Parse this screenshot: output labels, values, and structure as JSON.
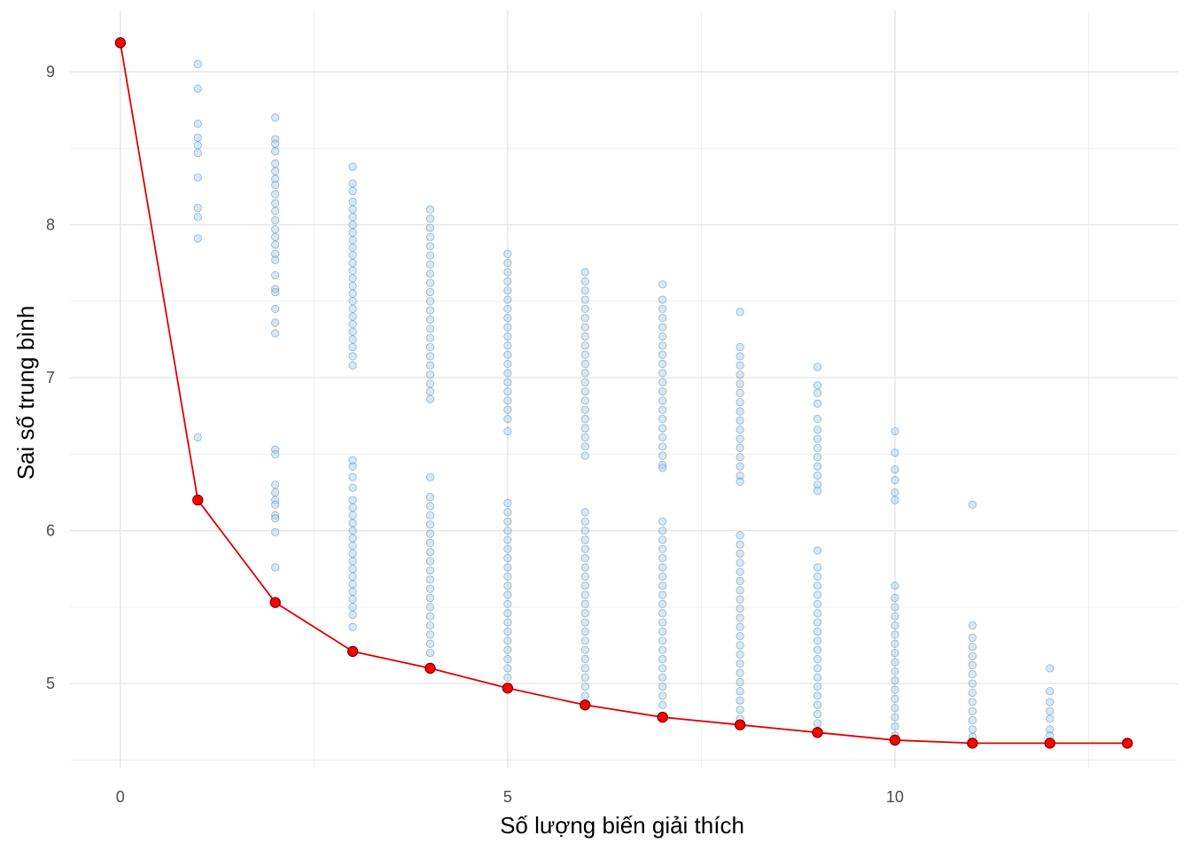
{
  "chart_data": {
    "type": "scatter",
    "title": "",
    "xlabel": "Số lượng biến giải thích",
    "ylabel": "Sai số trung bình",
    "xlim": [
      -0.65,
      13.65
    ],
    "ylim": [
      4.45,
      9.4
    ],
    "x_ticks": [
      0,
      5,
      10
    ],
    "y_ticks": [
      5,
      6,
      7,
      8,
      9
    ],
    "grid": true,
    "legend": "none",
    "colors": {
      "points_fill": "#a6cbe6",
      "points_stroke": "#3f7fae",
      "best_line": "#e00000",
      "best_point_fill": "#ff0000",
      "best_point_stroke": "#7a0000",
      "grid": "#e5e5e5"
    },
    "series": [
      {
        "kind": "all-models",
        "points_by_x": [
          {
            "x": 0,
            "y": [
              9.19
            ]
          },
          {
            "x": 1,
            "y": [
              9.05,
              8.89,
              8.66,
              8.57,
              8.52,
              8.47,
              8.31,
              8.11,
              8.05,
              7.91,
              6.61,
              6.2
            ]
          },
          {
            "x": 2,
            "y": [
              8.7,
              8.56,
              8.53,
              8.48,
              8.4,
              8.35,
              8.3,
              8.26,
              8.2,
              8.14,
              8.09,
              8.03,
              7.97,
              7.92,
              7.87,
              7.81,
              7.77,
              7.67,
              7.58,
              7.56,
              7.45,
              7.36,
              7.29,
              6.53,
              6.5,
              6.3,
              6.25,
              6.2,
              6.17,
              6.1,
              6.08,
              5.99,
              5.76,
              5.53
            ]
          },
          {
            "x": 3,
            "y": [
              8.38,
              8.27,
              8.22,
              8.15,
              8.1,
              8.05,
              8.0,
              7.95,
              7.9,
              7.85,
              7.8,
              7.75,
              7.7,
              7.65,
              7.6,
              7.55,
              7.5,
              7.45,
              7.4,
              7.35,
              7.3,
              7.25,
              7.2,
              7.14,
              7.08,
              6.46,
              6.42,
              6.35,
              6.28,
              6.2,
              6.15,
              6.1,
              6.05,
              6.0,
              5.95,
              5.9,
              5.85,
              5.8,
              5.75,
              5.7,
              5.65,
              5.6,
              5.55,
              5.5,
              5.45,
              5.37,
              5.21
            ]
          },
          {
            "x": 4,
            "y": [
              8.1,
              8.04,
              7.98,
              7.92,
              7.86,
              7.8,
              7.74,
              7.68,
              7.62,
              7.56,
              7.5,
              7.44,
              7.38,
              7.32,
              7.26,
              7.2,
              7.14,
              7.08,
              7.02,
              6.96,
              6.91,
              6.86,
              6.35,
              6.22,
              6.16,
              6.1,
              6.04,
              5.98,
              5.92,
              5.86,
              5.8,
              5.74,
              5.68,
              5.62,
              5.56,
              5.5,
              5.44,
              5.38,
              5.32,
              5.26,
              5.2,
              5.1
            ]
          },
          {
            "x": 5,
            "y": [
              7.81,
              7.75,
              7.69,
              7.63,
              7.57,
              7.51,
              7.45,
              7.39,
              7.33,
              7.27,
              7.21,
              7.15,
              7.09,
              7.03,
              6.97,
              6.91,
              6.85,
              6.79,
              6.73,
              6.65,
              6.18,
              6.12,
              6.06,
              6.0,
              5.94,
              5.88,
              5.82,
              5.76,
              5.7,
              5.64,
              5.58,
              5.52,
              5.46,
              5.4,
              5.34,
              5.28,
              5.22,
              5.16,
              5.1,
              5.04,
              4.97
            ]
          },
          {
            "x": 6,
            "y": [
              7.69,
              7.63,
              7.57,
              7.51,
              7.45,
              7.39,
              7.33,
              7.27,
              7.21,
              7.15,
              7.09,
              7.03,
              6.97,
              6.91,
              6.85,
              6.79,
              6.73,
              6.67,
              6.61,
              6.55,
              6.49,
              6.12,
              6.06,
              6.0,
              5.94,
              5.88,
              5.82,
              5.76,
              5.7,
              5.64,
              5.58,
              5.52,
              5.46,
              5.4,
              5.34,
              5.28,
              5.22,
              5.16,
              5.1,
              5.04,
              4.98,
              4.92,
              4.86
            ]
          },
          {
            "x": 7,
            "y": [
              7.61,
              7.51,
              7.45,
              7.39,
              7.33,
              7.27,
              7.21,
              7.15,
              7.09,
              7.03,
              6.97,
              6.91,
              6.85,
              6.79,
              6.73,
              6.67,
              6.61,
              6.55,
              6.49,
              6.43,
              6.41,
              6.06,
              6.0,
              5.94,
              5.88,
              5.82,
              5.76,
              5.7,
              5.64,
              5.58,
              5.52,
              5.46,
              5.4,
              5.34,
              5.28,
              5.22,
              5.16,
              5.1,
              5.04,
              4.98,
              4.92,
              4.86,
              4.78
            ]
          },
          {
            "x": 8,
            "y": [
              7.43,
              7.2,
              7.14,
              7.08,
              7.02,
              6.96,
              6.9,
              6.84,
              6.78,
              6.72,
              6.66,
              6.6,
              6.54,
              6.48,
              6.42,
              6.36,
              6.32,
              5.97,
              5.91,
              5.85,
              5.79,
              5.73,
              5.67,
              5.61,
              5.55,
              5.49,
              5.43,
              5.37,
              5.31,
              5.25,
              5.19,
              5.13,
              5.07,
              5.01,
              4.95,
              4.89,
              4.83,
              4.77,
              4.73
            ]
          },
          {
            "x": 9,
            "y": [
              7.07,
              6.95,
              6.9,
              6.83,
              6.73,
              6.66,
              6.6,
              6.54,
              6.48,
              6.42,
              6.36,
              6.3,
              6.26,
              5.87,
              5.76,
              5.7,
              5.64,
              5.58,
              5.52,
              5.46,
              5.4,
              5.34,
              5.28,
              5.22,
              5.16,
              5.1,
              5.04,
              4.98,
              4.92,
              4.86,
              4.8,
              4.74,
              4.68
            ]
          },
          {
            "x": 10,
            "y": [
              6.65,
              6.51,
              6.4,
              6.33,
              6.25,
              6.2,
              5.64,
              5.56,
              5.5,
              5.44,
              5.38,
              5.32,
              5.26,
              5.2,
              5.14,
              5.08,
              5.02,
              4.96,
              4.9,
              4.84,
              4.78,
              4.72,
              4.66,
              4.63
            ]
          },
          {
            "x": 11,
            "y": [
              6.17,
              5.38,
              5.3,
              5.24,
              5.18,
              5.12,
              5.06,
              5.0,
              4.94,
              4.88,
              4.82,
              4.76,
              4.7,
              4.65,
              4.61
            ]
          },
          {
            "x": 12,
            "y": [
              5.1,
              4.95,
              4.88,
              4.82,
              4.77,
              4.7,
              4.66,
              4.61
            ]
          },
          {
            "x": 13,
            "y": [
              4.61
            ]
          }
        ]
      },
      {
        "kind": "best-per-size",
        "x": [
          0,
          1,
          2,
          3,
          4,
          5,
          6,
          7,
          8,
          9,
          10,
          11,
          12,
          13
        ],
        "y": [
          9.19,
          6.2,
          5.53,
          5.21,
          5.1,
          4.97,
          4.86,
          4.78,
          4.73,
          4.68,
          4.63,
          4.61,
          4.61,
          4.61
        ]
      }
    ]
  }
}
